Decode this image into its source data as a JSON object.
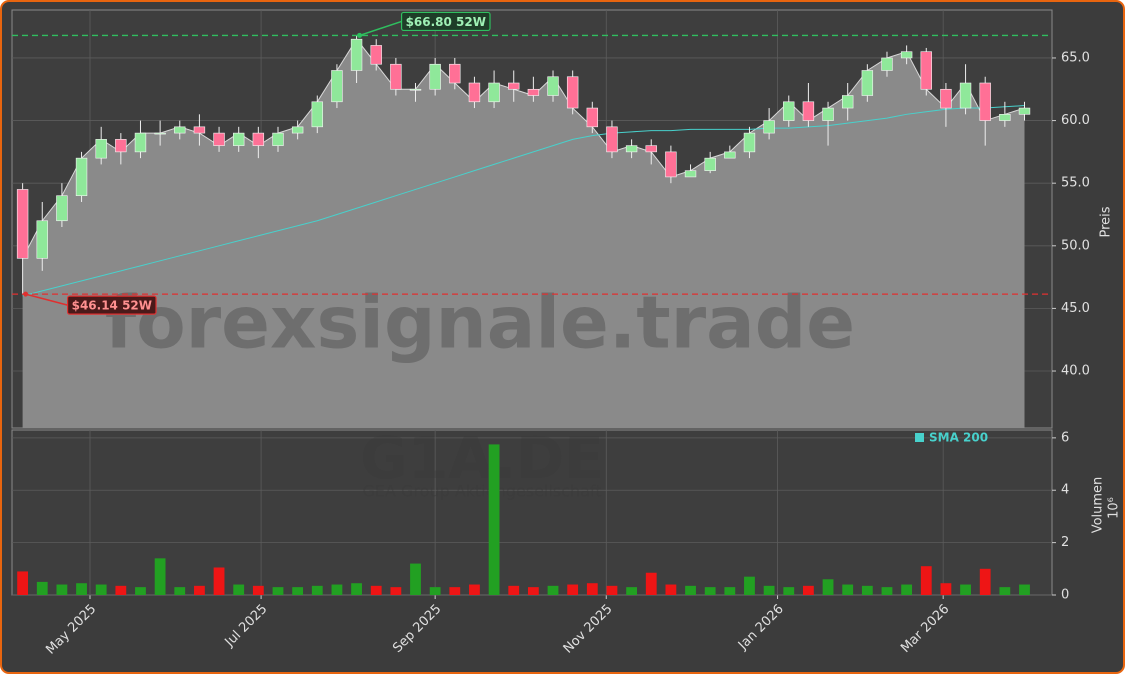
{
  "chart_data": {
    "type": "candlestick",
    "watermark": "forexsignale.trade",
    "ticker": "G1A.DE",
    "company": "GEA Group Aktiengesellschaft",
    "open": [
      54.5,
      49,
      52,
      54,
      57,
      58.5,
      57.5,
      59,
      59,
      59.5,
      59,
      58,
      59,
      58,
      59,
      59.5,
      61.5,
      64,
      66,
      64.5,
      62.5,
      62.5,
      64.5,
      63,
      61.5,
      63,
      62.5,
      62,
      63.5,
      61,
      59.5,
      57.5,
      58,
      57.5,
      55.5,
      56,
      57,
      57.5,
      59,
      60,
      61.5,
      60,
      61,
      62,
      64,
      65,
      65.5,
      62.5,
      61,
      63,
      60,
      60.5
    ],
    "high": [
      55,
      53.5,
      55,
      57.5,
      59.5,
      59,
      60,
      60,
      60,
      60.5,
      59.5,
      59.5,
      59.5,
      59.5,
      60,
      62,
      64.5,
      66.8,
      66.5,
      65,
      63,
      65,
      65,
      63.5,
      64,
      64,
      63.5,
      64,
      64,
      61.5,
      60,
      58.5,
      58.5,
      58,
      56.5,
      57.5,
      58,
      59.5,
      61,
      62,
      63,
      61.5,
      63,
      64.5,
      65.5,
      66,
      65.8,
      63,
      64.5,
      63.5,
      61.5,
      61.5
    ],
    "low": [
      46.14,
      48,
      51.5,
      53.5,
      56.5,
      56.5,
      57,
      58,
      58.5,
      58,
      57.5,
      57.5,
      57,
      57.5,
      58.5,
      59,
      61,
      63,
      64,
      62,
      61.5,
      62,
      62.5,
      61,
      61,
      61.5,
      61.5,
      61.5,
      60.5,
      59,
      57,
      57,
      56.5,
      55,
      55.5,
      55.8,
      57,
      57,
      58.5,
      59.5,
      59.5,
      58,
      60,
      61.5,
      63.5,
      64.5,
      62,
      59.5,
      60.5,
      58,
      59.5,
      60
    ],
    "close": [
      49,
      52,
      54,
      57,
      58.5,
      57.5,
      59,
      59,
      59.5,
      59,
      58,
      59,
      58,
      59,
      59.5,
      61.5,
      64,
      66.5,
      64.5,
      62.5,
      62.5,
      64.5,
      63,
      61.5,
      63,
      62.5,
      62,
      63.5,
      61,
      59.5,
      57.5,
      58,
      57.5,
      55.5,
      56,
      57,
      57.5,
      59,
      60,
      61.5,
      60,
      61,
      62,
      64,
      65,
      65.5,
      62.5,
      61,
      63,
      60,
      60.5,
      61
    ],
    "volume": [
      0.9,
      0.5,
      0.4,
      0.45,
      0.4,
      0.35,
      0.3,
      1.4,
      0.3,
      0.35,
      1.05,
      0.4,
      0.35,
      0.3,
      0.3,
      0.35,
      0.4,
      0.45,
      0.35,
      0.3,
      1.2,
      0.3,
      0.3,
      0.4,
      5.75,
      0.35,
      0.3,
      0.35,
      0.4,
      0.45,
      0.35,
      0.3,
      0.85,
      0.4,
      0.35,
      0.3,
      0.3,
      0.7,
      0.35,
      0.3,
      0.35,
      0.6,
      0.4,
      0.35,
      0.3,
      0.4,
      1.1,
      0.45,
      0.4,
      1.0,
      0.3,
      0.4
    ],
    "up_color": "#8fe89a",
    "down_color": "#ff7096",
    "volume_up_color": "#22a022",
    "volume_down_color": "#ee1515",
    "area_color": "#8a8a8a",
    "line_color": "#d8d8d8",
    "sma": {
      "name": "SMA 200",
      "color": "#48d1cc",
      "values": [
        46.0,
        46.4,
        46.8,
        47.2,
        47.6,
        48.0,
        48.4,
        48.8,
        49.2,
        49.6,
        50.0,
        50.4,
        50.8,
        51.2,
        51.6,
        52.0,
        52.5,
        53.0,
        53.5,
        54.0,
        54.5,
        55.0,
        55.5,
        56.0,
        56.5,
        57.0,
        57.5,
        58.0,
        58.5,
        58.8,
        59.0,
        59.1,
        59.2,
        59.2,
        59.3,
        59.3,
        59.3,
        59.3,
        59.4,
        59.4,
        59.5,
        59.6,
        59.8,
        60.0,
        60.2,
        60.5,
        60.7,
        60.9,
        61.0,
        61.0,
        61.1,
        61.2
      ]
    },
    "xlim": [
      -0.54,
      52.4
    ],
    "xticks": [
      {
        "value": 3.43,
        "label": "May 2025"
      },
      {
        "value": 12.14,
        "label": "Jul 2025"
      },
      {
        "value": 21.0,
        "label": "Sep 2025"
      },
      {
        "value": 29.71,
        "label": "Nov 2025"
      },
      {
        "value": 38.43,
        "label": "Jan 2026"
      },
      {
        "value": 46.86,
        "label": "Mar 2026"
      }
    ],
    "ylim": [
      35.45,
      68.83
    ],
    "yticks": [
      {
        "value": 40,
        "label": "40.0"
      },
      {
        "value": 45,
        "label": "45.0"
      },
      {
        "value": 50,
        "label": "50.0"
      },
      {
        "value": 55,
        "label": "55.0"
      },
      {
        "value": 60,
        "label": "60.0"
      },
      {
        "value": 65,
        "label": "65.0"
      }
    ],
    "ylabel": "Preis",
    "volume_ylim": [
      0,
      6.3
    ],
    "volume_yticks": [
      0,
      2,
      4,
      6
    ],
    "volume_ylabel": "Volumen",
    "volume_offset_label": "10⁶",
    "annotations": [
      {
        "label": "$66.80 52W",
        "value": 66.8,
        "x": 17,
        "color": "#2fbf5f"
      },
      {
        "label": "$46.14 52W",
        "value": 46.14,
        "x": 0,
        "color": "#e03030"
      }
    ],
    "grid": true,
    "legend": "upper right"
  }
}
